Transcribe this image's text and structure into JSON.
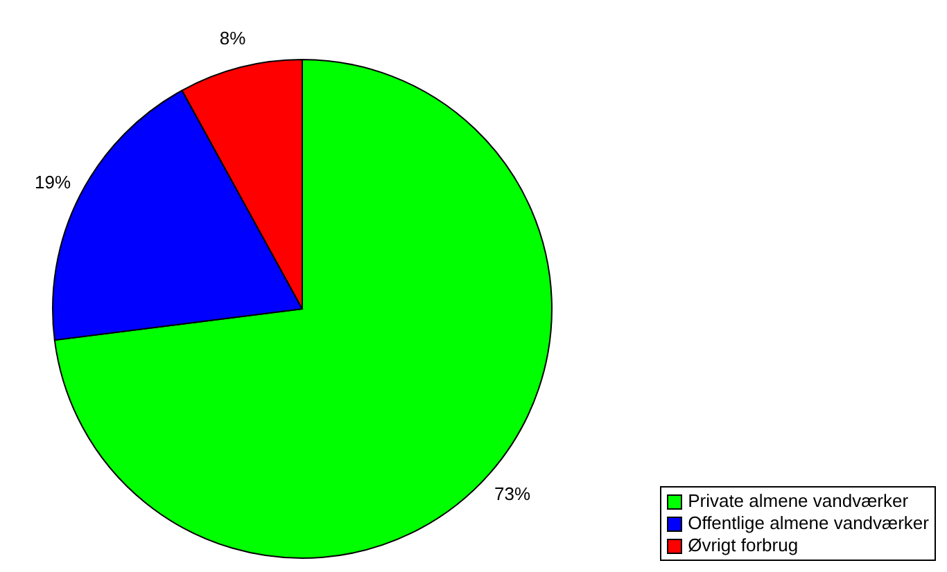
{
  "chart_data": {
    "type": "pie",
    "categories": [
      "Private almene vandværker",
      "Offentlige almene vandværker",
      "Øvrigt forbrug"
    ],
    "values": [
      73,
      19,
      8
    ],
    "colors": [
      "#00ff00",
      "#0000ff",
      "#ff0000"
    ],
    "value_labels": [
      "73%",
      "19%",
      "8%"
    ],
    "legend": "bottom right"
  }
}
